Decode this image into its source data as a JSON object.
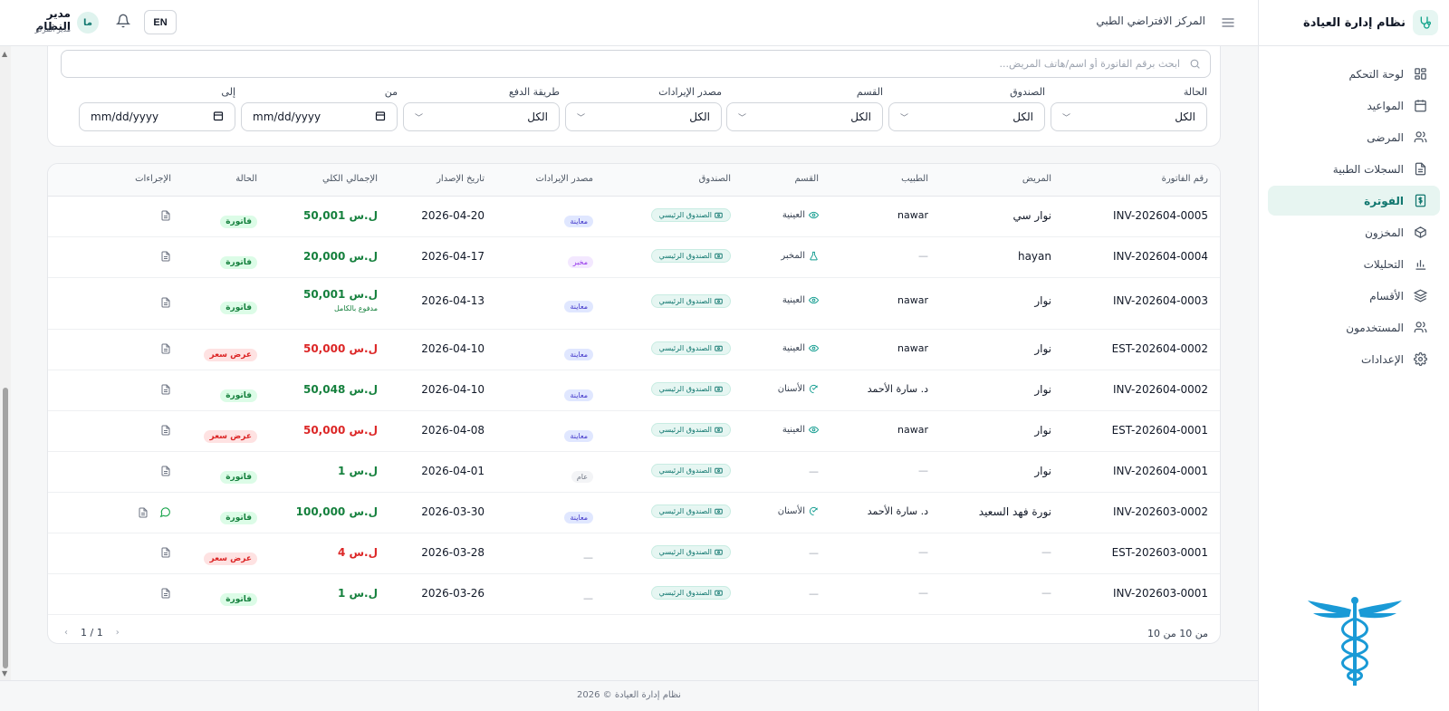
{
  "app": {
    "brand_title": "نظام إدارة العيادة",
    "center_name": "المركز الافتراضي الطبي",
    "footer": "نظام إدارة العيادة © 2026"
  },
  "user": {
    "name": "مدير النظام",
    "role": "مدير المركز",
    "initials": "ما"
  },
  "header": {
    "lang_button": "EN"
  },
  "sidebar": {
    "items": [
      {
        "label": "لوحة التحكم",
        "icon": "dashboard-icon",
        "active": false
      },
      {
        "label": "المواعيد",
        "icon": "calendar-icon",
        "active": false
      },
      {
        "label": "المرضى",
        "icon": "users-icon",
        "active": false
      },
      {
        "label": "السجلات الطبية",
        "icon": "file-text-icon",
        "active": false
      },
      {
        "label": "الفوترة",
        "icon": "receipt-icon",
        "active": true
      },
      {
        "label": "المخزون",
        "icon": "box-icon",
        "active": false
      },
      {
        "label": "التحليلات",
        "icon": "bar-chart-icon",
        "active": false
      },
      {
        "label": "الأقسام",
        "icon": "layers-icon",
        "active": false
      },
      {
        "label": "المستخدمون",
        "icon": "users-icon",
        "active": false
      },
      {
        "label": "الإعدادات",
        "icon": "gear-icon",
        "active": false
      }
    ]
  },
  "search": {
    "placeholder": "ابحث برقم الفاتورة أو اسم/هاتف المريض...",
    "value": ""
  },
  "filters": {
    "status": {
      "label": "الحالة",
      "value": "الكل"
    },
    "fund": {
      "label": "الصندوق",
      "value": "الكل"
    },
    "department": {
      "label": "القسم",
      "value": "الكل"
    },
    "revenue_source": {
      "label": "مصدر الإيرادات",
      "value": "الكل"
    },
    "payment_method": {
      "label": "طريقة الدفع",
      "value": "الكل"
    },
    "from": {
      "label": "من",
      "value": "mm/dd/yyyy"
    },
    "to": {
      "label": "إلى",
      "value": "mm/dd/yyyy"
    }
  },
  "table": {
    "columns": {
      "invoice": "رقم الفاتورة",
      "patient": "المريض",
      "doctor": "الطبيب",
      "department": "القسم",
      "fund": "الصندوق",
      "revenue_source": "مصدر الإيرادات",
      "issue_date": "تاريخ الإصدار",
      "total": "الإجمالي الكلي",
      "status": "الحالة",
      "actions": "الإجراءات"
    },
    "rows": [
      {
        "invoice": "INV-202604-0005",
        "patient": "نوار سي",
        "doctor": "nawar",
        "department": "العينية",
        "dept_icon": "eye-icon",
        "fund": "الصندوق الرئيسي",
        "source": "معاينة",
        "source_color": "blue",
        "date": "2026-04-20",
        "total": "50,001 ل.س",
        "total_color": "green",
        "note": "",
        "status": "فاتورة",
        "status_color": "green",
        "whatsapp": false
      },
      {
        "invoice": "INV-202604-0004",
        "patient": "hayan",
        "doctor": "—",
        "department": "المخبر",
        "dept_icon": "flask-icon",
        "fund": "الصندوق الرئيسي",
        "source": "مخبر",
        "source_color": "purple",
        "date": "2026-04-17",
        "total": "20,000 ل.س",
        "total_color": "green",
        "note": "",
        "status": "فاتورة",
        "status_color": "green",
        "whatsapp": false
      },
      {
        "invoice": "INV-202604-0003",
        "patient": "نوار",
        "doctor": "nawar",
        "department": "العينية",
        "dept_icon": "eye-icon",
        "fund": "الصندوق الرئيسي",
        "source": "معاينة",
        "source_color": "blue",
        "date": "2026-04-13",
        "total": "50,001 ل.س",
        "total_color": "green",
        "note": "مدفوع بالكامل",
        "status": "فاتورة",
        "status_color": "green",
        "whatsapp": false
      },
      {
        "invoice": "EST-202604-0002",
        "patient": "نوار",
        "doctor": "nawar",
        "department": "العينية",
        "dept_icon": "eye-icon",
        "fund": "الصندوق الرئيسي",
        "source": "معاينة",
        "source_color": "blue",
        "date": "2026-04-10",
        "total": "50,000 ل.س",
        "total_color": "red",
        "note": "",
        "status": "عرض سعر",
        "status_color": "red",
        "whatsapp": false
      },
      {
        "invoice": "INV-202604-0002",
        "patient": "نوار",
        "doctor": "د. سارة الأحمد",
        "department": "الأسنان",
        "dept_icon": "tooth-icon",
        "fund": "الصندوق الرئيسي",
        "source": "معاينة",
        "source_color": "blue",
        "date": "2026-04-10",
        "total": "50,048 ل.س",
        "total_color": "green",
        "note": "",
        "status": "فاتورة",
        "status_color": "green",
        "whatsapp": false
      },
      {
        "invoice": "EST-202604-0001",
        "patient": "نوار",
        "doctor": "nawar",
        "department": "العينية",
        "dept_icon": "eye-icon",
        "fund": "الصندوق الرئيسي",
        "source": "معاينة",
        "source_color": "blue",
        "date": "2026-04-08",
        "total": "50,000 ل.س",
        "total_color": "red",
        "note": "",
        "status": "عرض سعر",
        "status_color": "red",
        "whatsapp": false
      },
      {
        "invoice": "INV-202604-0001",
        "patient": "نوار",
        "doctor": "—",
        "department": "—",
        "dept_icon": "",
        "fund": "الصندوق الرئيسي",
        "source": "عام",
        "source_color": "gray",
        "date": "2026-04-01",
        "total": "1 ل.س",
        "total_color": "green",
        "note": "",
        "status": "فاتورة",
        "status_color": "green",
        "whatsapp": false
      },
      {
        "invoice": "INV-202603-0002",
        "patient": "نورة فهد السعيد",
        "doctor": "د. سارة الأحمد",
        "department": "الأسنان",
        "dept_icon": "tooth-icon",
        "fund": "الصندوق الرئيسي",
        "source": "معاينة",
        "source_color": "blue",
        "date": "2026-03-30",
        "total": "100,000 ل.س",
        "total_color": "green",
        "note": "",
        "status": "فاتورة",
        "status_color": "green",
        "whatsapp": true
      },
      {
        "invoice": "EST-202603-0001",
        "patient": "—",
        "doctor": "—",
        "department": "—",
        "dept_icon": "",
        "fund": "الصندوق الرئيسي",
        "source": "—",
        "source_color": "",
        "date": "2026-03-28",
        "total": "4 ل.س",
        "total_color": "red",
        "note": "",
        "status": "عرض سعر",
        "status_color": "red",
        "whatsapp": false
      },
      {
        "invoice": "INV-202603-0001",
        "patient": "—",
        "doctor": "—",
        "department": "—",
        "dept_icon": "",
        "fund": "الصندوق الرئيسي",
        "source": "—",
        "source_color": "",
        "date": "2026-03-26",
        "total": "1 ل.س",
        "total_color": "green",
        "note": "",
        "status": "فاتورة",
        "status_color": "green",
        "whatsapp": false
      }
    ],
    "footer_count": "من 10 من 10",
    "pagination": "1 / 1"
  },
  "colors": {
    "accent": "#0f766e",
    "accent_bg": "#e7f5f1",
    "green": "#15803d",
    "red": "#dc2626",
    "logo": "#1a9ad6"
  }
}
